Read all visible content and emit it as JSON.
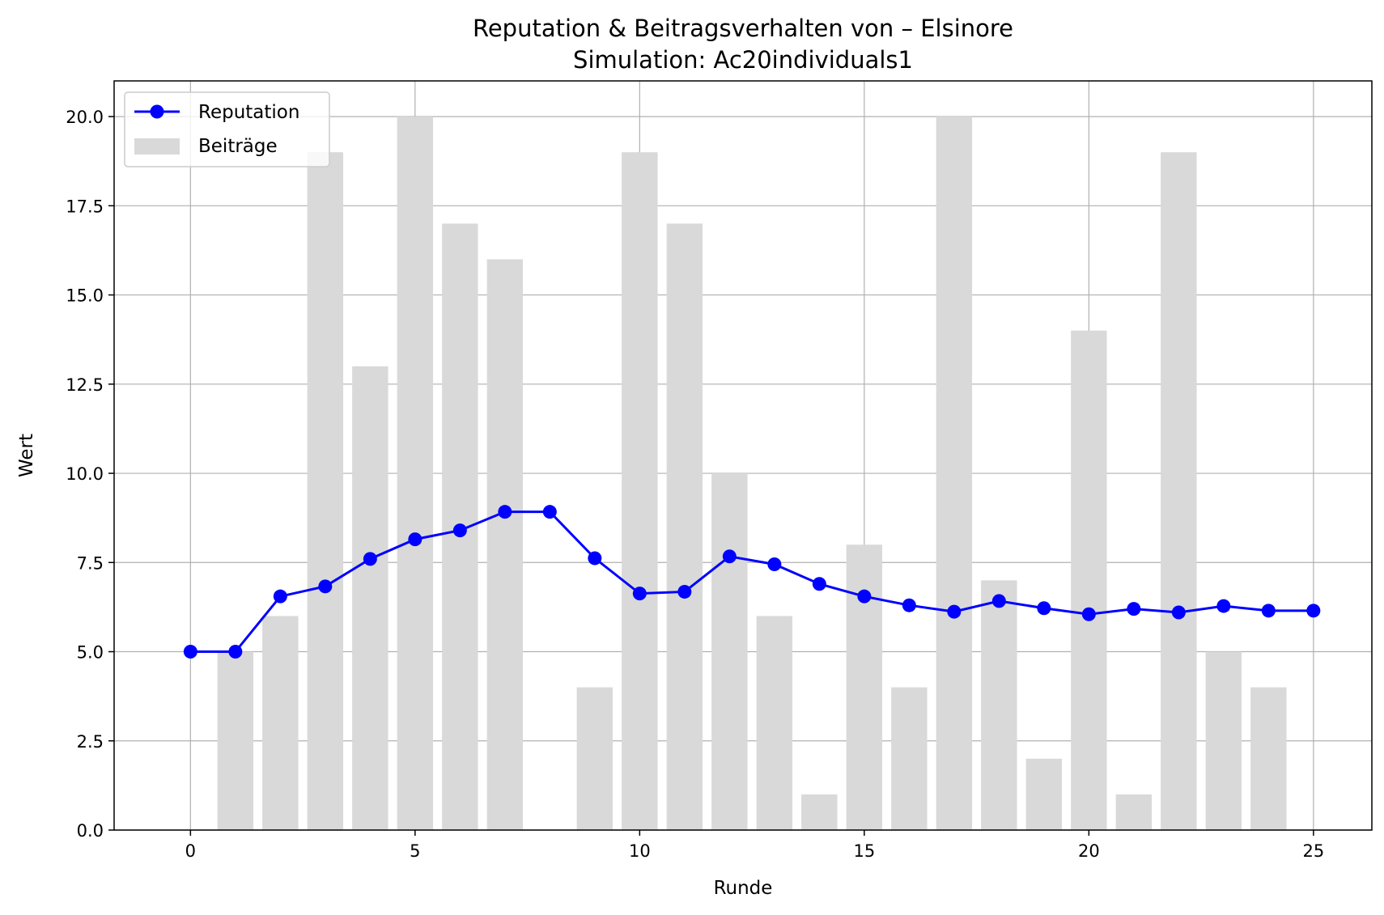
{
  "chart_data": {
    "type": "line",
    "title": "Reputation & Beitragsverhalten von – Elsinore",
    "subtitle": "Simulation: Ac20individuals1",
    "xlabel": "Runde",
    "ylabel": "Wert",
    "xlim": [
      -1.7,
      26.3
    ],
    "ylim": [
      0,
      21
    ],
    "xticks": [
      0,
      5,
      10,
      15,
      20,
      25
    ],
    "yticks": [
      0.0,
      2.5,
      5.0,
      7.5,
      10.0,
      12.5,
      15.0,
      17.5,
      20.0
    ],
    "xtick_labels": [
      "0",
      "5",
      "10",
      "15",
      "20",
      "25"
    ],
    "ytick_labels": [
      "0.0",
      "2.5",
      "5.0",
      "7.5",
      "10.0",
      "12.5",
      "15.0",
      "17.5",
      "20.0"
    ],
    "grid": true,
    "legend_position": "upper-left",
    "series": [
      {
        "name": "Reputation",
        "kind": "line",
        "color": "#0000ff",
        "x": [
          0,
          1,
          2,
          3,
          4,
          5,
          6,
          7,
          8,
          9,
          10,
          11,
          12,
          13,
          14,
          15,
          16,
          17,
          18,
          19,
          20,
          21,
          22,
          23,
          24,
          25
        ],
        "values": [
          5.0,
          5.0,
          6.55,
          6.83,
          7.6,
          8.15,
          8.4,
          8.92,
          8.92,
          7.62,
          6.63,
          6.68,
          7.67,
          7.45,
          6.9,
          6.55,
          6.3,
          6.12,
          6.42,
          6.22,
          6.05,
          6.2,
          6.1,
          6.28,
          6.15,
          6.15
        ]
      },
      {
        "name": "Beiträge",
        "kind": "bar",
        "color": "#d9d9d9",
        "x": [
          1,
          2,
          3,
          4,
          5,
          6,
          7,
          8,
          9,
          10,
          11,
          12,
          13,
          14,
          15,
          16,
          17,
          18,
          19,
          20,
          21,
          22,
          23,
          24
        ],
        "values": [
          5,
          6,
          19,
          13,
          20,
          17,
          16,
          0,
          4,
          19,
          17,
          10,
          6,
          1,
          8,
          4,
          20,
          7,
          2,
          14,
          1,
          19,
          5,
          4
        ]
      }
    ]
  }
}
